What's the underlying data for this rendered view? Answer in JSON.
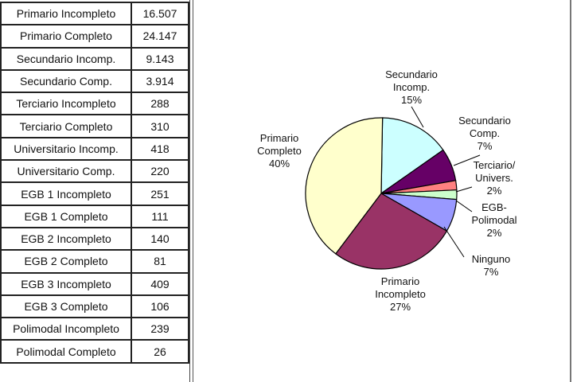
{
  "table": {
    "rows": [
      {
        "label": "Primario Incompleto",
        "value": "16.507"
      },
      {
        "label": "Primario Completo",
        "value": "24.147"
      },
      {
        "label": "Secundario Incomp.",
        "value": "9.143"
      },
      {
        "label": "Secundario Comp.",
        "value": "3.914"
      },
      {
        "label": "Terciario Incompleto",
        "value": "288"
      },
      {
        "label": "Terciario Completo",
        "value": "310"
      },
      {
        "label": "Universitario Incomp.",
        "value": "418"
      },
      {
        "label": "Universitario Comp.",
        "value": "220"
      },
      {
        "label": "EGB 1 Incompleto",
        "value": "251"
      },
      {
        "label": "EGB 1 Completo",
        "value": "111"
      },
      {
        "label": "EGB 2 Incompleto",
        "value": "140"
      },
      {
        "label": "EGB 2 Completo",
        "value": "81"
      },
      {
        "label": "EGB 3 Incompleto",
        "value": "409"
      },
      {
        "label": "EGB 3 Completo",
        "value": "106"
      },
      {
        "label": "Polimodal Incompleto",
        "value": "239"
      },
      {
        "label": "Polimodal Completo",
        "value": "26"
      }
    ]
  },
  "chart_data": {
    "type": "pie",
    "slices": [
      {
        "name": "Secundario Incomp.",
        "value": 15,
        "color": "#ccffff",
        "lines": [
          "Secundario",
          "Incomp.",
          "15%"
        ]
      },
      {
        "name": "Secundario Comp.",
        "value": 7,
        "color": "#660066",
        "lines": [
          "Secundario",
          "Comp.",
          "7%"
        ]
      },
      {
        "name": "Terciario/ Univers.",
        "value": 2,
        "color": "#ff8080",
        "lines": [
          "Terciario/",
          "Univers.",
          "2%"
        ]
      },
      {
        "name": "EGB-Polimodal",
        "value": 2,
        "color": "#ccffcc",
        "lines": [
          "EGB-",
          "Polimodal",
          "2%"
        ]
      },
      {
        "name": "Ninguno",
        "value": 7,
        "color": "#9999ff",
        "lines": [
          "Ninguno",
          "7%"
        ]
      },
      {
        "name": "Primario Incompleto",
        "value": 27,
        "color": "#993366",
        "lines": [
          "Primario",
          "Incompleto",
          "27%"
        ]
      },
      {
        "name": "Primario Completo",
        "value": 40,
        "color": "#ffffcc",
        "lines": [
          "Primario",
          "Completo",
          "40%"
        ]
      }
    ]
  }
}
